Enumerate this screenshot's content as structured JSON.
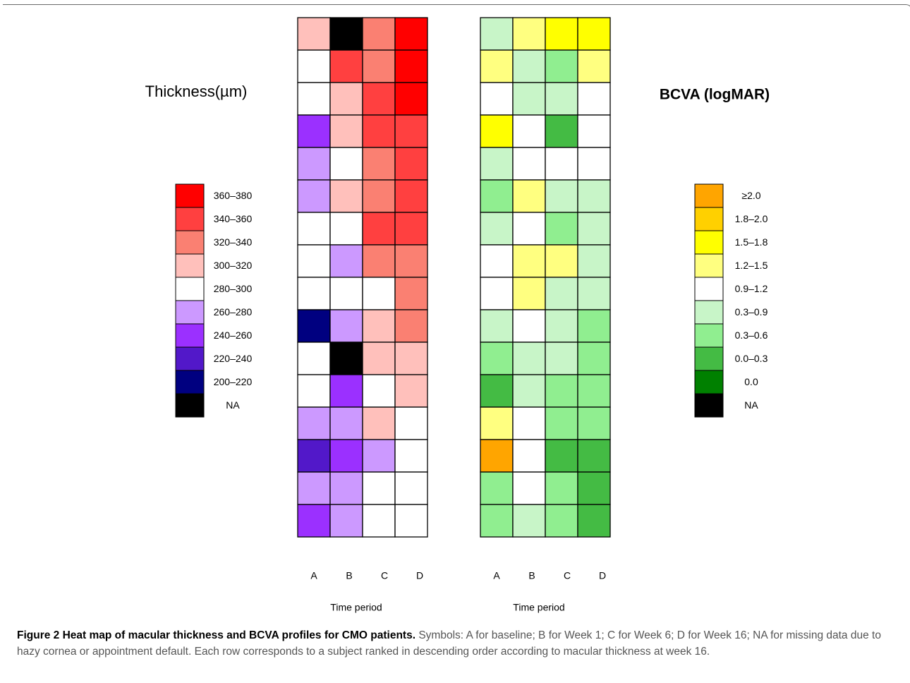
{
  "chart_data": [
    {
      "type": "heatmap",
      "panel": "thickness",
      "legend_title": "Thickness(µm)",
      "columns": [
        "A",
        "B",
        "C",
        "D"
      ],
      "xlabel": "Time period",
      "legend": [
        {
          "label": "360–380",
          "color": "#ff0000"
        },
        {
          "label": "340–360",
          "color": "#ff4040"
        },
        {
          "label": "320–340",
          "color": "#fa8072"
        },
        {
          "label": "300–320",
          "color": "#ffc0bb"
        },
        {
          "label": "280–300",
          "color": "#ffffff"
        },
        {
          "label": "260–280",
          "color": "#cc99ff"
        },
        {
          "label": "240–260",
          "color": "#9b30ff"
        },
        {
          "label": "220–240",
          "color": "#5218c9"
        },
        {
          "label": "200–220",
          "color": "#000080"
        },
        {
          "label": "NA",
          "color": "#000000"
        }
      ],
      "rows": [
        [
          "300–320",
          "NA",
          "320–340",
          "360–380"
        ],
        [
          "280–300",
          "340–360",
          "320–340",
          "360–380"
        ],
        [
          "280–300",
          "300–320",
          "340–360",
          "360–380"
        ],
        [
          "240–260",
          "300–320",
          "340–360",
          "340–360"
        ],
        [
          "260–280",
          "280–300",
          "320–340",
          "340–360"
        ],
        [
          "260–280",
          "300–320",
          "320–340",
          "340–360"
        ],
        [
          "280–300",
          "280–300",
          "340–360",
          "340–360"
        ],
        [
          "280–300",
          "260–280",
          "320–340",
          "320–340"
        ],
        [
          "280–300",
          "280–300",
          "280–300",
          "320–340"
        ],
        [
          "200–220",
          "260–280",
          "300–320",
          "320–340"
        ],
        [
          "280–300",
          "NA",
          "300–320",
          "300–320"
        ],
        [
          "280–300",
          "240–260",
          "280–300",
          "300–320"
        ],
        [
          "260–280",
          "260–280",
          "300–320",
          "280–300"
        ],
        [
          "220–240",
          "240–260",
          "260–280",
          "280–300"
        ],
        [
          "260–280",
          "260–280",
          "280–300",
          "280–300"
        ],
        [
          "240–260",
          "260–280",
          "280–300",
          "280–300"
        ]
      ]
    },
    {
      "type": "heatmap",
      "panel": "bcva",
      "legend_title": "BCVA (logMAR)",
      "columns": [
        "A",
        "B",
        "C",
        "D"
      ],
      "xlabel": "Time period",
      "legend": [
        {
          "label": "≥2.0",
          "color": "#ffa500"
        },
        {
          "label": "1.8–2.0",
          "color": "#ffd000"
        },
        {
          "label": "1.5–1.8",
          "color": "#ffff00"
        },
        {
          "label": "1.2–1.5",
          "color": "#ffff80"
        },
        {
          "label": "0.9–1.2",
          "color": "#ffffff"
        },
        {
          "label": "0.3–0.9",
          "color": "#c8f5c8"
        },
        {
          "label": "0.3–0.6",
          "color": "#90ee90"
        },
        {
          "label": "0.0–0.3",
          "color": "#44bb44"
        },
        {
          "label": "0.0",
          "color": "#008000"
        },
        {
          "label": "NA",
          "color": "#000000"
        }
      ],
      "rows": [
        [
          "0.3–0.9",
          "1.2–1.5",
          "1.5–1.8",
          "1.5–1.8"
        ],
        [
          "1.2–1.5",
          "0.3–0.9",
          "0.3–0.6",
          "1.2–1.5"
        ],
        [
          "0.9–1.2",
          "0.3–0.9",
          "0.3–0.9",
          "0.9–1.2"
        ],
        [
          "1.5–1.8",
          "0.9–1.2",
          "0.0–0.3",
          "0.9–1.2"
        ],
        [
          "0.3–0.9",
          "0.9–1.2",
          "0.9–1.2",
          "0.9–1.2"
        ],
        [
          "0.3–0.6",
          "1.2–1.5",
          "0.3–0.9",
          "0.3–0.9"
        ],
        [
          "0.3–0.9",
          "0.9–1.2",
          "0.3–0.6",
          "0.3–0.9"
        ],
        [
          "0.9–1.2",
          "1.2–1.5",
          "1.2–1.5",
          "0.3–0.9"
        ],
        [
          "0.9–1.2",
          "1.2–1.5",
          "0.3–0.9",
          "0.3–0.9"
        ],
        [
          "0.3–0.9",
          "0.9–1.2",
          "0.3–0.9",
          "0.3–0.6"
        ],
        [
          "0.3–0.6",
          "0.3–0.9",
          "0.3–0.9",
          "0.3–0.6"
        ],
        [
          "0.0–0.3",
          "0.3–0.9",
          "0.3–0.6",
          "0.3–0.6"
        ],
        [
          "1.2–1.5",
          "0.9–1.2",
          "0.3–0.6",
          "0.3–0.6"
        ],
        [
          "≥2.0",
          "0.9–1.2",
          "0.0–0.3",
          "0.0–0.3"
        ],
        [
          "0.3–0.6",
          "0.9–1.2",
          "0.3–0.6",
          "0.0–0.3"
        ],
        [
          "0.3–0.6",
          "0.3–0.9",
          "0.3–0.6",
          "0.0–0.3"
        ]
      ]
    }
  ],
  "caption": {
    "title": "Figure 2 Heat map of macular thickness and BCVA profiles for CMO patients.",
    "text": "Symbols: A for baseline; B for Week 1; C for Week 6; D for Week 16; NA for missing data due to hazy cornea or appointment default. Each row corresponds to a subject ranked in descending order according to macular thickness at week 16."
  }
}
